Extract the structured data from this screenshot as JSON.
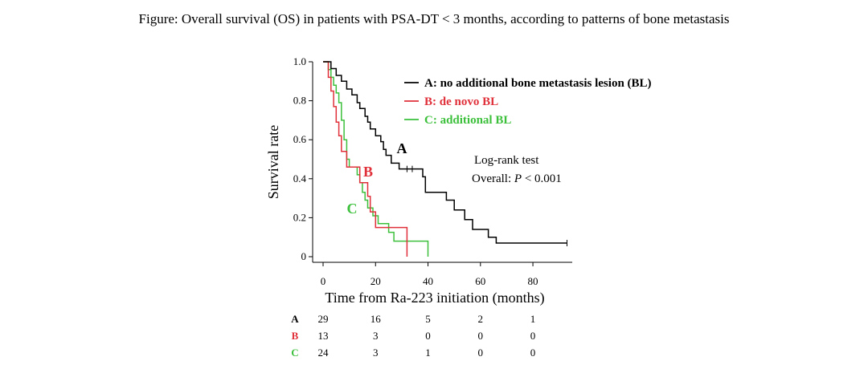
{
  "title": "Figure: Overall survival (OS)  in patients with PSA-DT < 3 months, according to patterns of  bone metastasis",
  "colors": {
    "A": "#000000",
    "B": "#e0303a",
    "C": "#3cc03c"
  },
  "chart_data": {
    "type": "line",
    "subtype": "kaplan-meier step curves",
    "xlabel": "Time from Ra-223 initiation (months)",
    "ylabel": "Survival rate",
    "xlim": [
      0,
      95
    ],
    "ylim": [
      0,
      1.0
    ],
    "x_ticks": [
      0,
      20,
      40,
      60,
      80
    ],
    "x_tick_labels": [
      "0",
      "20",
      "40",
      "60",
      "80"
    ],
    "y_ticks": [
      0,
      0.2,
      0.4,
      0.6,
      0.8,
      1.0
    ],
    "y_tick_labels": [
      "0",
      "0.2",
      "0.4",
      "0.6",
      "0.8",
      "1.0"
    ],
    "grid": false,
    "legend_position": "top-right",
    "series": [
      {
        "key": "A",
        "name": "A: no additional bone metastasis lesion (BL)",
        "curve_label": "A",
        "steps": [
          [
            0,
            1.0
          ],
          [
            3,
            0.965
          ],
          [
            5,
            0.93
          ],
          [
            7,
            0.9
          ],
          [
            9,
            0.86
          ],
          [
            11,
            0.83
          ],
          [
            13,
            0.79
          ],
          [
            14,
            0.76
          ],
          [
            16,
            0.72
          ],
          [
            17,
            0.69
          ],
          [
            18,
            0.655
          ],
          [
            20,
            0.62
          ],
          [
            22,
            0.59
          ],
          [
            23,
            0.55
          ],
          [
            24,
            0.52
          ],
          [
            26,
            0.48
          ],
          [
            29,
            0.45
          ],
          [
            38,
            0.41
          ],
          [
            39,
            0.33
          ],
          [
            47,
            0.29
          ],
          [
            50,
            0.24
          ],
          [
            54,
            0.19
          ],
          [
            57,
            0.14
          ],
          [
            63,
            0.1
          ],
          [
            66,
            0.07
          ],
          [
            93,
            0.07
          ]
        ],
        "censor_times": [
          32,
          34,
          93
        ]
      },
      {
        "key": "B",
        "name": "B: de novo BL",
        "curve_label": "B",
        "steps": [
          [
            0,
            1.0
          ],
          [
            2,
            0.92
          ],
          [
            3,
            0.85
          ],
          [
            4,
            0.77
          ],
          [
            5,
            0.69
          ],
          [
            6,
            0.62
          ],
          [
            7,
            0.54
          ],
          [
            9,
            0.46
          ],
          [
            14,
            0.38
          ],
          [
            17,
            0.31
          ],
          [
            18,
            0.23
          ],
          [
            20,
            0.15
          ],
          [
            32,
            0.0
          ]
        ],
        "censor_times": []
      },
      {
        "key": "C",
        "name": "C: additional BL",
        "curve_label": "C",
        "steps": [
          [
            0,
            1.0
          ],
          [
            2,
            0.96
          ],
          [
            3,
            0.92
          ],
          [
            4,
            0.88
          ],
          [
            5,
            0.84
          ],
          [
            6,
            0.79
          ],
          [
            7,
            0.7
          ],
          [
            8,
            0.6
          ],
          [
            9,
            0.5
          ],
          [
            10,
            0.46
          ],
          [
            13,
            0.42
          ],
          [
            14,
            0.38
          ],
          [
            15,
            0.33
          ],
          [
            16,
            0.29
          ],
          [
            17,
            0.25
          ],
          [
            19,
            0.21
          ],
          [
            21,
            0.17
          ],
          [
            25,
            0.125
          ],
          [
            27,
            0.08
          ],
          [
            40,
            0.0
          ]
        ],
        "censor_times": []
      }
    ],
    "annotations": {
      "test_name": "Log-rank test",
      "overall_prefix": "Overall: ",
      "p_symbol": "P",
      "p_value": " < 0.001"
    },
    "risk_table": {
      "times": [
        0,
        20,
        40,
        60,
        80
      ],
      "rows": [
        {
          "key": "A",
          "label": "A",
          "counts": [
            "29",
            "16",
            "5",
            "2",
            "1"
          ]
        },
        {
          "key": "B",
          "label": "B",
          "counts": [
            "13",
            "3",
            "0",
            "0",
            "0"
          ]
        },
        {
          "key": "C",
          "label": "C",
          "counts": [
            "24",
            "3",
            "1",
            "0",
            "0"
          ]
        }
      ]
    }
  }
}
